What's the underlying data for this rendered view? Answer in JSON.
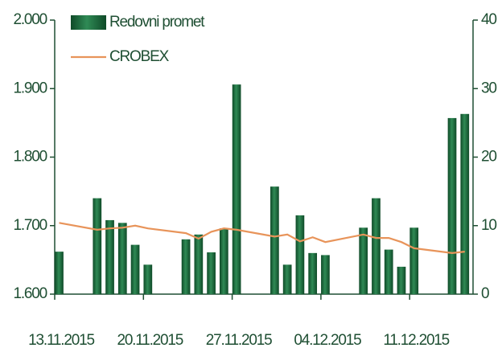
{
  "chart_data": {
    "type": "bar_line",
    "x": [
      "13.11.2015",
      "16.11.2015",
      "17.11.2015",
      "18.11.2015",
      "19.11.2015",
      "20.11.2015",
      "23.11.2015",
      "24.11.2015",
      "25.11.2015",
      "26.11.2015",
      "27.11.2015",
      "30.11.2015",
      "01.12.2015",
      "02.12.2015",
      "03.12.2015",
      "04.12.2015",
      "07.12.2015",
      "08.12.2015",
      "09.12.2015",
      "10.12.2015",
      "11.12.2015",
      "14.12.2015",
      "15.12.2015"
    ],
    "xlim": [
      "13.11.2015",
      "16.12.2015"
    ],
    "xticks": [
      "13.11.2015",
      "20.11.2015",
      "27.11.2015",
      "04.12.2015",
      "11.12.2015"
    ],
    "series": [
      {
        "name": "Redovni promet",
        "type": "bar",
        "axis": "y2",
        "color": "#1e6b3c",
        "values": [
          6.2,
          14,
          10.8,
          10.4,
          7.2,
          4.3,
          8,
          8.7,
          6.1,
          9.6,
          30.6,
          15.7,
          4.3,
          11.5,
          6,
          5.7,
          9.7,
          14,
          6.5,
          4,
          9.7,
          25.7,
          26.3
        ]
      },
      {
        "name": "CROBEX",
        "type": "line",
        "axis": "y",
        "color": "#e8945a",
        "values": [
          1704,
          1694,
          1696,
          1697,
          1700,
          1696,
          1689,
          1681,
          1691,
          1696,
          1694,
          1684,
          1687,
          1677,
          1683,
          1676,
          1687,
          1682,
          1682,
          1676,
          1667,
          1660,
          1662
        ]
      }
    ],
    "ylim": [
      1600,
      2000
    ],
    "yticks": [
      {
        "value": 1600,
        "label": "1.600"
      },
      {
        "value": 1700,
        "label": "1.700"
      },
      {
        "value": 1800,
        "label": "1.800"
      },
      {
        "value": 1900,
        "label": "1.900"
      },
      {
        "value": 2000,
        "label": "2.000"
      }
    ],
    "y2lim": [
      0,
      40
    ],
    "y2ticks": [
      0,
      10,
      20,
      30,
      40
    ],
    "legend": "top-left"
  }
}
